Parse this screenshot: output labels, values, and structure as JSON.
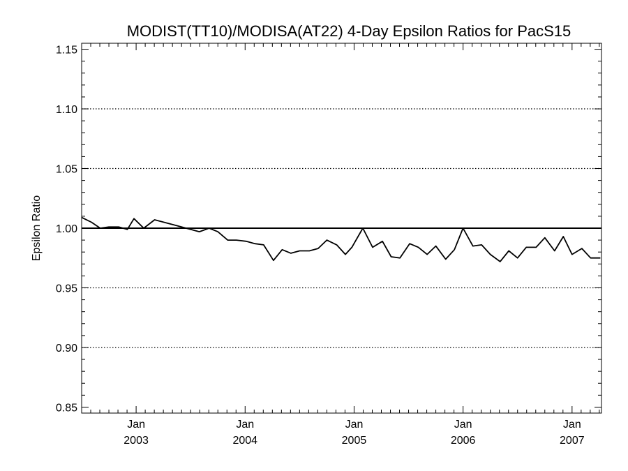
{
  "chart_data": {
    "type": "line",
    "title": "MODIST(TT10)/MODISA(AT22) 4-Day Epsilon Ratios for PacS15",
    "ylabel": "Epsilon Ratio",
    "xlabel": "",
    "xlim": [
      2002.5,
      2007.27
    ],
    "ylim": [
      0.845,
      1.155
    ],
    "y_ticks": [
      {
        "value": 0.85,
        "label": "0.85"
      },
      {
        "value": 0.9,
        "label": "0.90"
      },
      {
        "value": 0.95,
        "label": "0.95"
      },
      {
        "value": 1.0,
        "label": "1.00"
      },
      {
        "value": 1.05,
        "label": "1.05"
      },
      {
        "value": 1.1,
        "label": "1.10"
      },
      {
        "value": 1.15,
        "label": "1.15"
      }
    ],
    "y_gridlines": [
      0.9,
      0.95,
      1.05,
      1.1
    ],
    "grid": "horizontal dotted",
    "x_ticks": [
      {
        "value": 2003.0,
        "month": "Jan",
        "year": "2003"
      },
      {
        "value": 2004.0,
        "month": "Jan",
        "year": "2004"
      },
      {
        "value": 2005.0,
        "month": "Jan",
        "year": "2005"
      },
      {
        "value": 2006.0,
        "month": "Jan",
        "year": "2006"
      },
      {
        "value": 2007.0,
        "month": "Jan",
        "year": "2007"
      }
    ],
    "reference_line": 1.0,
    "series": [
      {
        "color": "#000000",
        "x": [
          2002.5,
          2002.59,
          2002.67,
          2002.75,
          2002.84,
          2002.92,
          2002.98,
          2003.07,
          2003.17,
          2003.5,
          2003.58,
          2003.67,
          2003.75,
          2003.84,
          2003.92,
          2004.01,
          2004.09,
          2004.17,
          2004.26,
          2004.34,
          2004.42,
          2004.5,
          2004.59,
          2004.67,
          2004.75,
          2004.84,
          2004.92,
          2004.98,
          2005.08,
          2005.17,
          2005.26,
          2005.34,
          2005.42,
          2005.51,
          2005.59,
          2005.67,
          2005.75,
          2005.84,
          2005.92,
          2006.0,
          2006.09,
          2006.17,
          2006.25,
          2006.34,
          2006.42,
          2006.5,
          2006.58,
          2006.67,
          2006.75,
          2006.84,
          2006.92,
          2007.0,
          2007.09,
          2007.17,
          2007.26
        ],
        "y": [
          1.009,
          1.005,
          1.0,
          1.001,
          1.001,
          0.999,
          1.008,
          1.0,
          1.007,
          0.999,
          0.997,
          1.0,
          0.997,
          0.99,
          0.99,
          0.989,
          0.987,
          0.986,
          0.973,
          0.982,
          0.979,
          0.981,
          0.981,
          0.983,
          0.99,
          0.986,
          0.978,
          0.984,
          1.0,
          0.984,
          0.989,
          0.976,
          0.975,
          0.987,
          0.984,
          0.978,
          0.985,
          0.974,
          0.982,
          1.0,
          0.985,
          0.986,
          0.978,
          0.972,
          0.981,
          0.975,
          0.984,
          0.984,
          0.992,
          0.981,
          0.993,
          0.978,
          0.983,
          0.975,
          0.975
        ]
      }
    ]
  }
}
